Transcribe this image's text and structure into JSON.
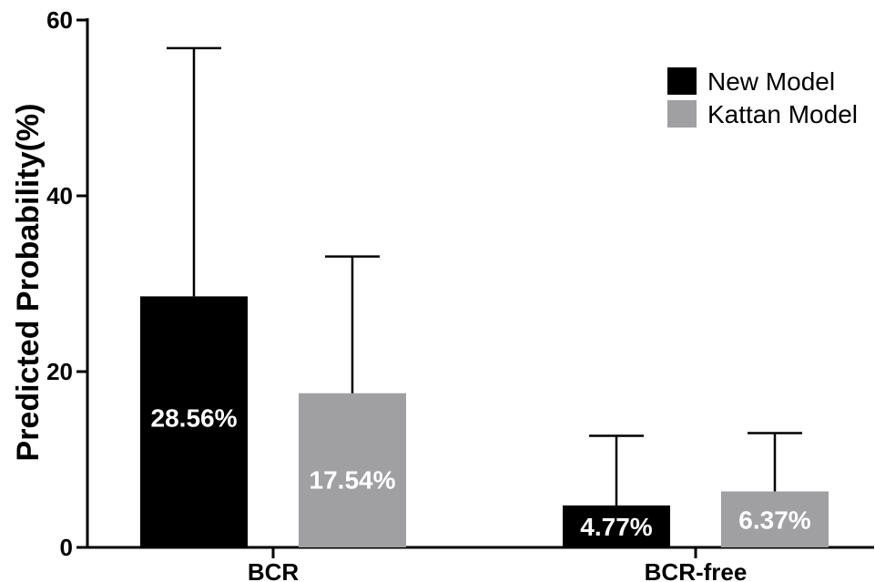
{
  "chart_data": {
    "type": "bar",
    "title": "",
    "xlabel": "",
    "ylabel": "Predicted Probability(%)",
    "ylim": [
      0,
      60
    ],
    "yticks": [
      0,
      20,
      40,
      60
    ],
    "grid": false,
    "legend_position": "top-right",
    "categories": [
      "BCR",
      "BCR-free"
    ],
    "series": [
      {
        "name": "New Model",
        "color": "#000000",
        "values": [
          28.56,
          4.77
        ],
        "error_upper": [
          56.8,
          12.7
        ],
        "data_labels": [
          "28.56%",
          "4.77%"
        ]
      },
      {
        "name": "Kattan Model",
        "color": "#a0a0a3",
        "values": [
          17.54,
          6.37
        ],
        "error_upper": [
          33.1,
          13.0
        ],
        "data_labels": [
          "17.54%",
          "6.37%"
        ]
      }
    ]
  }
}
